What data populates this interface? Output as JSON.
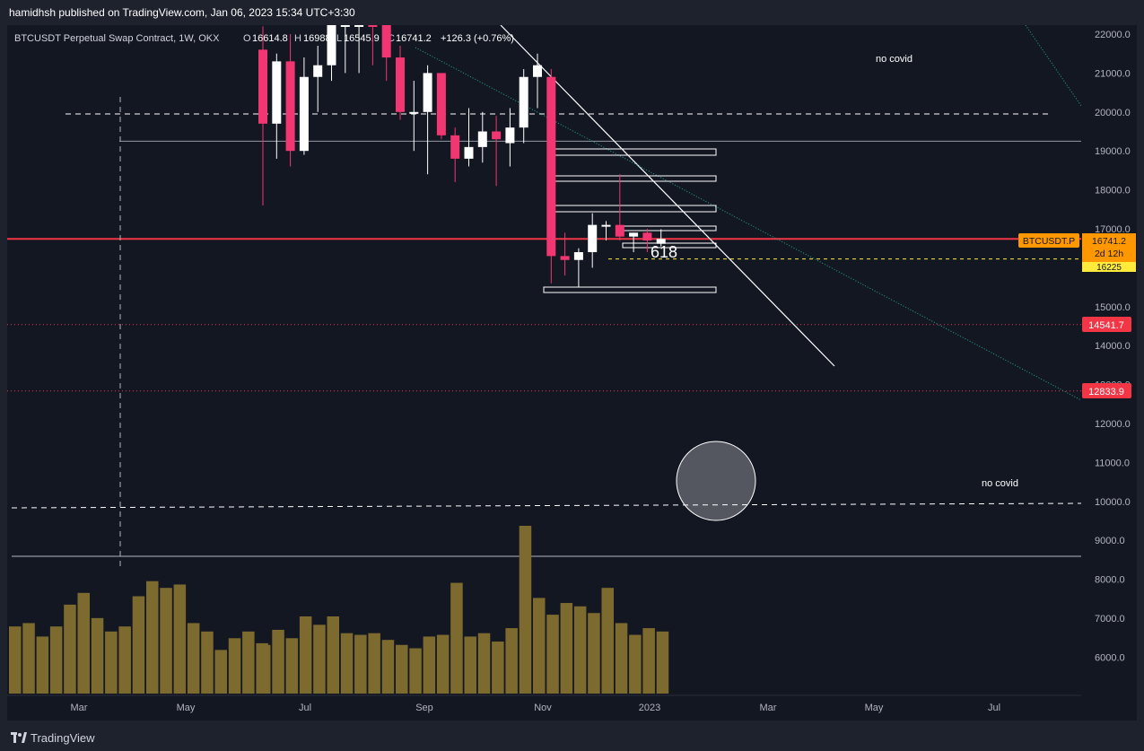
{
  "header": {
    "published_by": "hamidhsh published on TradingView.com, Jan 06, 2023 15:34 UTC+3:30"
  },
  "legend": {
    "symbol_description": "BTCUSDT Perpetual Swap Contract, 1W, OKX",
    "open_label": "O",
    "open_value": "16614.8",
    "high_label": "H",
    "high_value": "16988",
    "low_label": "L",
    "low_value": "16545.9",
    "close_label": "C",
    "close_value": "16741.2",
    "change_value": "+126.3 (+0.76%)"
  },
  "price_scale": {
    "ticks": [
      "22000.0",
      "21000.0",
      "20000.0",
      "19000.0",
      "18000.0",
      "17000.0",
      "16000.0",
      "15000.0",
      "14000.0",
      "13000.0",
      "12000.0",
      "11000.0",
      "10000.0",
      "9000.0",
      "8000.0",
      "7000.0",
      "6000.0"
    ]
  },
  "time_scale": {
    "ticks": [
      "Mar",
      "May",
      "Jul",
      "Sep",
      "Nov",
      "2023",
      "Mar",
      "May",
      "Jul"
    ]
  },
  "labels": {
    "symbol_tag": "BTCUSDT.P",
    "last_price": "16741.2",
    "countdown": "2d 12h",
    "support_price": "16225",
    "level_1": "14541.7",
    "level_2": "12833.9",
    "fib_text": "618",
    "note_top": "no covid",
    "note_bottom": "no covid"
  },
  "colors": {
    "bg": "#131722",
    "up": "#ffffff",
    "down": "#f23672",
    "volume": "#7d6a2e",
    "price_line": "#f23645",
    "last_price_tag": "#ff9800",
    "level_tag": "#f23645",
    "support_line": "#ffeb3b",
    "channel": "#26a69a"
  },
  "footer": {
    "brand": "TradingView"
  },
  "chart_data": {
    "type": "candlestick",
    "timeframe": "1W",
    "y_unit": "USDT",
    "ylim": [
      5000,
      22500
    ],
    "candles": [
      {
        "o": 21600,
        "h": 22200,
        "l": 17600,
        "c": 19700
      },
      {
        "o": 19700,
        "h": 21500,
        "l": 18800,
        "c": 21300
      },
      {
        "o": 21300,
        "h": 22000,
        "l": 18600,
        "c": 19000
      },
      {
        "o": 19000,
        "h": 21400,
        "l": 18900,
        "c": 20900
      },
      {
        "o": 20900,
        "h": 21700,
        "l": 20000,
        "c": 21200
      },
      {
        "o": 21200,
        "h": 23000,
        "l": 20800,
        "c": 22500
      },
      {
        "o": 22800,
        "h": 24000,
        "l": 21000,
        "c": 24000
      },
      {
        "o": 23500,
        "h": 25000,
        "l": 21000,
        "c": 25000
      },
      {
        "o": 23000,
        "h": 23400,
        "l": 21200,
        "c": 22300
      },
      {
        "o": 22300,
        "h": 22700,
        "l": 20800,
        "c": 21400
      },
      {
        "o": 21400,
        "h": 21700,
        "l": 19800,
        "c": 20000
      },
      {
        "o": 20000,
        "h": 20800,
        "l": 19000,
        "c": 20000
      },
      {
        "o": 20000,
        "h": 21200,
        "l": 18400,
        "c": 21000
      },
      {
        "o": 21000,
        "h": 21000,
        "l": 19300,
        "c": 19400
      },
      {
        "o": 19400,
        "h": 19600,
        "l": 18200,
        "c": 18800
      },
      {
        "o": 18800,
        "h": 20100,
        "l": 18600,
        "c": 19100
      },
      {
        "o": 19100,
        "h": 20000,
        "l": 18700,
        "c": 19500
      },
      {
        "o": 19500,
        "h": 19900,
        "l": 18100,
        "c": 19300
      },
      {
        "o": 19200,
        "h": 20100,
        "l": 18600,
        "c": 19600
      },
      {
        "o": 19600,
        "h": 21100,
        "l": 19200,
        "c": 20900
      },
      {
        "o": 20900,
        "h": 21500,
        "l": 20100,
        "c": 21200
      },
      {
        "o": 20900,
        "h": 21100,
        "l": 15600,
        "c": 16300
      },
      {
        "o": 16300,
        "h": 16900,
        "l": 15800,
        "c": 16200
      },
      {
        "o": 16200,
        "h": 16500,
        "l": 15500,
        "c": 16400
      },
      {
        "o": 16400,
        "h": 17400,
        "l": 16000,
        "c": 17100
      },
      {
        "o": 17100,
        "h": 17200,
        "l": 16700,
        "c": 17100
      },
      {
        "o": 17100,
        "h": 18400,
        "l": 16700,
        "c": 16800
      },
      {
        "o": 16800,
        "h": 16900,
        "l": 16400,
        "c": 16900
      },
      {
        "o": 16900,
        "h": 17000,
        "l": 16400,
        "c": 16700
      },
      {
        "o": 16614.8,
        "h": 16988,
        "l": 16545.9,
        "c": 16741.2
      }
    ],
    "volume_rel": [
      0.29,
      0.38,
      0.33,
      0.46,
      0.41,
      0.46,
      0.36,
      0.35,
      0.36,
      0.32,
      0.29,
      0.27,
      0.34,
      0.35,
      0.66,
      0.34,
      0.36,
      0.31,
      0.39,
      1.0,
      0.57,
      0.47,
      0.54,
      0.52,
      0.48,
      0.63,
      0.42,
      0.35,
      0.39,
      0.37
    ],
    "extra_volume_rel": [
      0.4,
      0.42,
      0.34,
      0.4,
      0.53,
      0.6,
      0.45,
      0.37,
      0.4,
      0.58,
      0.67,
      0.63,
      0.65,
      0.42,
      0.37,
      0.26,
      0.33,
      0.37,
      0.3,
      0.42,
      0.71,
      0.29,
      0.29,
      0.22,
      0.19,
      0.12,
      0.29,
      0.17,
      0.13,
      0.09
    ],
    "levels": {
      "last_price": 16741.2,
      "support": 16225,
      "level_1": 14541.7,
      "level_2": 12833.9,
      "dashed_high": 19950,
      "solid_high": 19250,
      "dashed_low": 9850,
      "solid_low": 8550
    },
    "x_ticks": [
      "Mar",
      "May",
      "Jul",
      "Sep",
      "Nov",
      "2023",
      "Mar",
      "May",
      "Jul"
    ]
  }
}
